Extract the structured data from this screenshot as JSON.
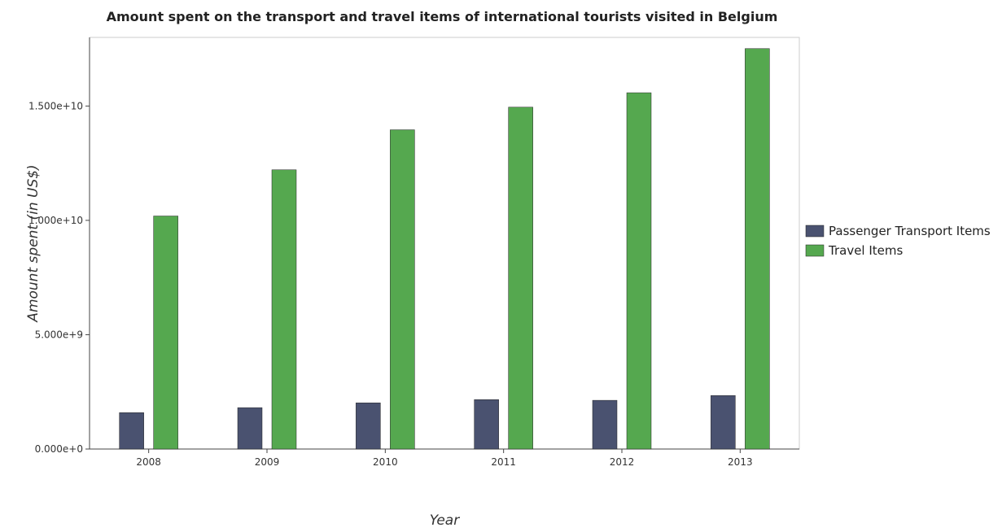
{
  "chart_data": {
    "type": "bar",
    "title": "Amount spent on the transport and travel items of international tourists visited in Belgium",
    "xlabel": "Year",
    "ylabel": "Amount spent (in US$)",
    "categories": [
      "2008",
      "2009",
      "2010",
      "2011",
      "2012",
      "2013"
    ],
    "series": [
      {
        "name": "Passenger Transport Items",
        "color": "#4a5270",
        "values": [
          1590000000,
          1810000000,
          2020000000,
          2160000000,
          2130000000,
          2340000000
        ]
      },
      {
        "name": "Travel Items",
        "color": "#55a84f",
        "values": [
          10190000000,
          12210000000,
          13960000000,
          14950000000,
          15580000000,
          17510000000
        ]
      }
    ],
    "ylim": [
      0,
      18000000000
    ],
    "yticks": [
      0,
      5000000000,
      10000000000,
      15000000000
    ],
    "ytick_labels": [
      "0.000e+0",
      "5.000e+9",
      "1.000e+10",
      "1.500e+10"
    ],
    "grid": false,
    "legend_position": "right"
  }
}
